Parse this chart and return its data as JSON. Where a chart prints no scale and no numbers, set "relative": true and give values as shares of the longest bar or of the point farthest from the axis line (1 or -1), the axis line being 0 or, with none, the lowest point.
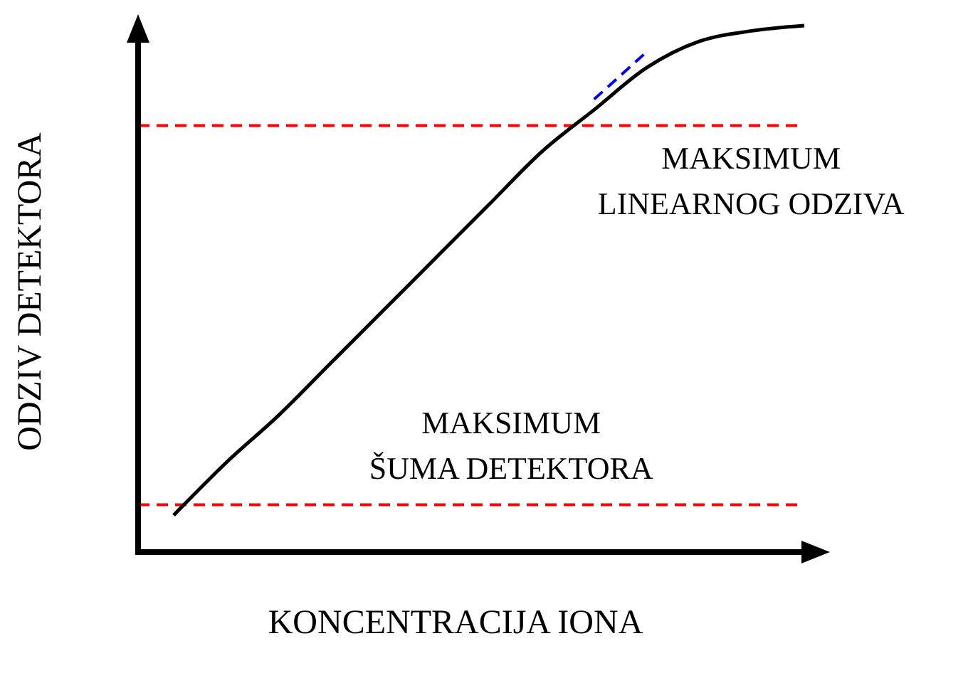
{
  "chart_data": {
    "type": "line",
    "relative": true,
    "xlabel": "KONCENTRACIJA IONA",
    "ylabel": "ODZIV DETEKTORA",
    "categories": [
      null,
      null,
      null,
      null,
      null,
      null,
      null,
      null,
      null,
      null,
      null,
      null,
      null
    ],
    "series": [
      {
        "color": "#000000",
        "line_style": "solid",
        "values": [
          0.07,
          0.17,
          0.26,
          0.36,
          0.46,
          0.56,
          0.66,
          0.76,
          0.84,
          0.92,
          0.97,
          0.99,
          1.0
        ]
      },
      {
        "color": "#0000ff",
        "line_style": "dashed",
        "values": [
          null,
          null,
          null,
          null,
          null,
          null,
          null,
          null,
          0.86,
          0.95,
          null,
          null,
          null
        ]
      }
    ],
    "ref_lines": [
      {
        "axis": "y",
        "value": 0.81,
        "label": "MAKSIMUM LINEARNOG ODZIVA",
        "color": "#ff0000",
        "line_style": "dashed"
      },
      {
        "axis": "y",
        "value": 0.09,
        "label": "MAKSIMUM ŠUMA DETEKTORA",
        "color": "#ff0000",
        "line_style": "dashed"
      }
    ],
    "grid": false,
    "legend": false,
    "marker": "none"
  }
}
